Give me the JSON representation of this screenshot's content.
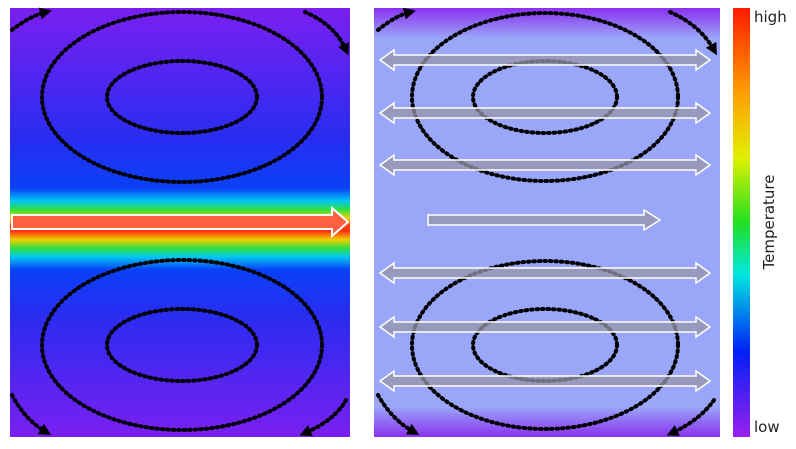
{
  "colorbar": {
    "high_label": "high",
    "low_label": "low",
    "title": "Temperature"
  }
}
